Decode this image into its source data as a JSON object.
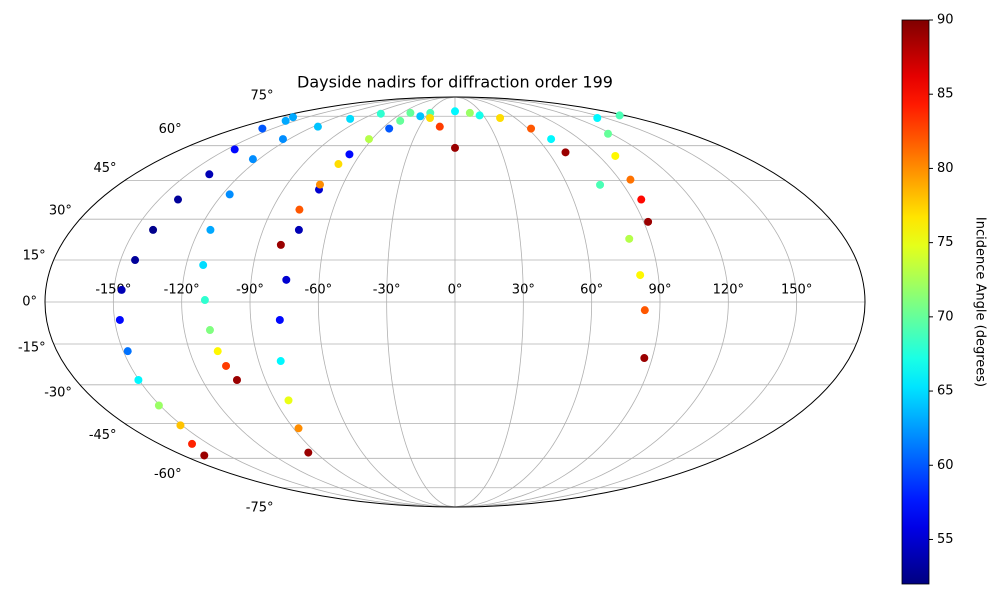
{
  "chart_data": {
    "type": "scatter",
    "projection": "mollweide",
    "title": "Dayside nadirs for diffraction order 199",
    "grid": true,
    "xlim": [
      -180,
      180
    ],
    "ylim": [
      -90,
      90
    ],
    "xticks": [
      {
        "value": -150,
        "label": "-150°"
      },
      {
        "value": -120,
        "label": "-120°"
      },
      {
        "value": -90,
        "label": "-90°"
      },
      {
        "value": -60,
        "label": "-60°"
      },
      {
        "value": -30,
        "label": "-30°"
      },
      {
        "value": 0,
        "label": "0°"
      },
      {
        "value": 30,
        "label": "30°"
      },
      {
        "value": 60,
        "label": "60°"
      },
      {
        "value": 90,
        "label": "90°"
      },
      {
        "value": 120,
        "label": "120°"
      },
      {
        "value": 150,
        "label": "150°"
      }
    ],
    "yticks": [
      {
        "value": -75,
        "label": "-75°"
      },
      {
        "value": -60,
        "label": "-60°"
      },
      {
        "value": -45,
        "label": "-45°"
      },
      {
        "value": -30,
        "label": "-30°"
      },
      {
        "value": -15,
        "label": "-15°"
      },
      {
        "value": 0,
        "label": "0°"
      },
      {
        "value": 15,
        "label": "15°"
      },
      {
        "value": 30,
        "label": "30°"
      },
      {
        "value": 45,
        "label": "45°"
      },
      {
        "value": 60,
        "label": "60°"
      },
      {
        "value": 75,
        "label": "75°"
      }
    ],
    "colorbar": {
      "label": "Incidence Angle (degrees)",
      "cmap": "jet",
      "lim": [
        52,
        90
      ],
      "ticks": [
        55,
        60,
        65,
        70,
        75,
        80,
        85,
        90
      ]
    },
    "series": [
      {
        "x": [
          -164.6,
          -158.6,
          -144.8,
          -137.9,
          -140.4,
          -141.6,
          -143.5,
          -146.6,
          -147.7,
          -148,
          -150.3,
          -150.6,
          -150.9,
          -160,
          -166
        ],
        "y": [
          74.5,
          68.3,
          58.3,
          47.6,
          37.5,
          26,
          15,
          4.3,
          -6.4,
          -17.6,
          -28.2,
          -37.9,
          -45.8,
          -53.6,
          -58.7
        ],
        "values": [
          63,
          60,
          57,
          54,
          53,
          52.5,
          53,
          54,
          57,
          61,
          66,
          72,
          78,
          84,
          89
        ]
      },
      {
        "x": [
          -158.8,
          -123.7,
          -116.2,
          -114.7,
          -112.4,
          -109.8,
          -108.6,
          -107.3,
          -105.8,
          -103.5
        ],
        "y": [
          72.4,
          54,
          39.5,
          26,
          13.2,
          0.7,
          -10,
          -17.6,
          -23,
          -28.2
        ],
        "values": [
          63,
          62,
          62,
          63,
          65,
          68,
          71,
          76,
          83,
          89
        ]
      },
      {
        "x": [
          -94.9,
          -87.2,
          -83.3,
          -79.9,
          -77.2,
          -74.5,
          -73.2,
          -71.4,
          -66.8,
          -54.2,
          -36,
          0,
          26.1,
          69.5,
          77.6,
          80.4,
          82,
          83.4,
          86.4
        ],
        "y": [
          -57.4,
          -47,
          -35.9,
          -21.2,
          -6.4,
          7.9,
          26,
          41.4,
          56.1,
          68.3,
          75,
          78,
          75.5,
          63.1,
          43.3,
          22.7,
          9.6,
          -2.9,
          -20.1
        ],
        "values": [
          89,
          80,
          75,
          66,
          57,
          55,
          54,
          55,
          57,
          60,
          64,
          66,
          67,
          66,
          69,
          73,
          76,
          82,
          89
        ]
      },
      {
        "x": [
          -79.6,
          -76.5,
          -72.3,
          -69.2,
          -62.2,
          -51.4,
          -28.1,
          16.9,
          44.9,
          62.6,
          71
        ],
        "y": [
          20.5,
          33.6,
          43.4,
          51.9,
          63.1,
          72.4,
          77,
          77,
          74,
          68.3,
          57
        ],
        "values": [
          89,
          82,
          80,
          77,
          73,
          70,
          69,
          72,
          77,
          82,
          89
        ]
      },
      {
        "x": [
          -124.4,
          -116.2,
          -102.4,
          -82.3,
          -50.7,
          -24.9,
          -12.9,
          0
        ],
        "y": [
          63.1,
          69.3,
          73.5,
          76.5,
          77,
          74,
          69.3,
          59
        ],
        "values": [
          62,
          64,
          65,
          68,
          70,
          77,
          83,
          89
        ]
      },
      {
        "x": [
          174.5,
          141.7,
          117.6,
          100.3,
          96,
          94.4,
          92.1
        ],
        "y": [
          75.5,
          74,
          65.7,
          55.4,
          45.4,
          37.5,
          29
        ],
        "values": [
          69,
          66,
          70,
          76,
          81,
          85,
          89
        ]
      }
    ]
  }
}
